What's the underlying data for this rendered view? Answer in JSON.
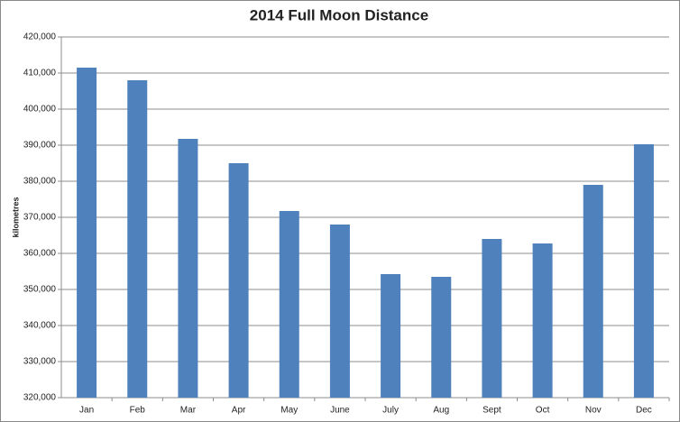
{
  "chart_data": {
    "type": "bar",
    "title": "2014 Full Moon Distance",
    "y_label": "kilometres",
    "categories": [
      "Jan",
      "Feb",
      "Mar",
      "Apr",
      "May",
      "June",
      "July",
      "Aug",
      "Sept",
      "Oct",
      "Nov",
      "Dec"
    ],
    "values": [
      411500,
      408000,
      391750,
      385000,
      371750,
      368000,
      354250,
      353500,
      364000,
      362750,
      379000,
      390250
    ],
    "color": "#4f81bd",
    "ylim": [
      320000,
      420000
    ],
    "yticks": [
      {
        "value": 320000,
        "label": "320,000"
      },
      {
        "value": 330000,
        "label": "330,000"
      },
      {
        "value": 340000,
        "label": "340,000"
      },
      {
        "value": 350000,
        "label": "350,000"
      },
      {
        "value": 360000,
        "label": "360,000"
      },
      {
        "value": 370000,
        "label": "370,000"
      },
      {
        "value": 380000,
        "label": "380,000"
      },
      {
        "value": 390000,
        "label": "390,000"
      },
      {
        "value": 400000,
        "label": "400,000"
      },
      {
        "value": 410000,
        "label": "410,000"
      },
      {
        "value": 420000,
        "label": "420,000"
      }
    ],
    "grid": true
  }
}
